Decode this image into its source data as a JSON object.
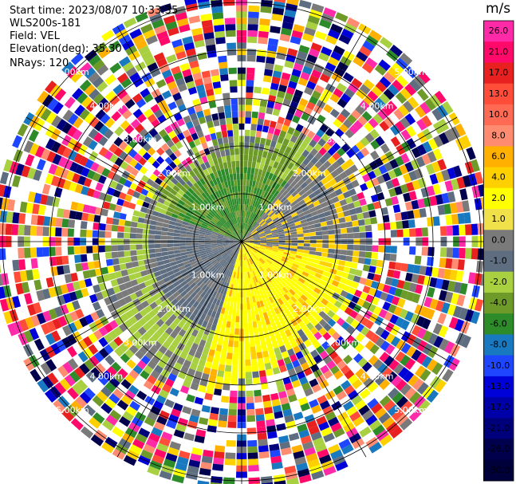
{
  "header": {
    "start_time": "Start time: 2023/08/07 10:33:35",
    "instrument": "WLS200s-181",
    "field": "Field: VEL",
    "elevation": "Elevation(deg): 35.30",
    "nrays": "NRays: 120"
  },
  "chart_data": {
    "type": "heatmap",
    "projection": "polar PPI",
    "field": "VEL",
    "units": "m/s",
    "range_rings_km": [
      1.0,
      2.0,
      3.0,
      4.0,
      5.0
    ],
    "ring_labels": [
      "1.00km",
      "2.00km",
      "3.00km",
      "4.00km",
      "5.00km"
    ],
    "max_range_km": 5.2,
    "nrays": 120,
    "radial_lines_deg": [
      0,
      30,
      60,
      90,
      120,
      150,
      180,
      210,
      240,
      270,
      300,
      330
    ],
    "colorbar": {
      "label": "m/s",
      "ticks": [
        "26.0",
        "21.0",
        "17.0",
        "13.0",
        "10.0",
        "8.0",
        "6.0",
        "4.0",
        "2.0",
        "1.0",
        "0.0",
        "-1.0",
        "-2.0",
        "-4.0",
        "-6.0",
        "-8.0",
        "-10.0",
        "-13.0",
        "-17.0",
        "-21.0",
        "-26.0",
        "-30.0"
      ],
      "colors": [
        "#ff2aa8",
        "#ff0a6a",
        "#e82020",
        "#ff4d3a",
        "#ff6a55",
        "#ff8c70",
        "#ffb000",
        "#ffd000",
        "#ffff00",
        "#f0e04a",
        "#7a7a7a",
        "#5e6e80",
        "#a8d040",
        "#6e9a2a",
        "#2e8b2a",
        "#1878c0",
        "#1e46ff",
        "#0000d8",
        "#0000a8",
        "#00007a",
        "#00004c",
        "#00003a"
      ]
    },
    "zones": [
      {
        "description": "near-range toward sensor",
        "values": [
          -6.0,
          -4.0,
          -2.0,
          -1.0
        ]
      },
      {
        "description": "near-range away from sensor",
        "values": [
          1.0,
          2.0,
          4.0
        ]
      },
      {
        "description": "far-range noise",
        "values": [
          "aliased / noisy"
        ]
      }
    ]
  }
}
